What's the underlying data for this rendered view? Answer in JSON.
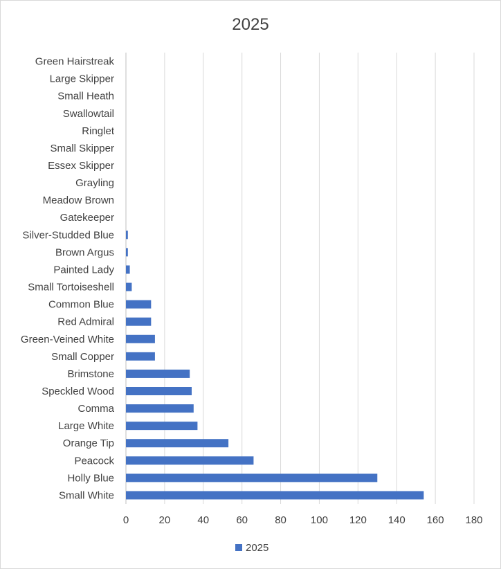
{
  "chart_data": {
    "type": "bar",
    "orientation": "horizontal",
    "title": "2025",
    "xlabel": "",
    "ylabel": "",
    "xlim": [
      0,
      180
    ],
    "x_ticks": [
      0,
      20,
      40,
      60,
      80,
      100,
      120,
      140,
      160,
      180
    ],
    "grid": true,
    "legend_position": "bottom",
    "bar_color": "#4472c4",
    "categories": [
      "Small White",
      "Holly Blue",
      "Peacock",
      "Orange Tip",
      "Large White",
      "Comma",
      "Speckled Wood",
      "Brimstone",
      "Small Copper",
      "Green-Veined White",
      "Red Admiral",
      "Common Blue",
      "Small Tortoiseshell",
      "Painted Lady",
      "Brown Argus",
      "Silver-Studded Blue",
      "Gatekeeper",
      "Meadow Brown",
      "Grayling",
      "Essex Skipper",
      "Small Skipper",
      "Ringlet",
      "Swallowtail",
      "Small Heath",
      "Large Skipper",
      "Green Hairstreak"
    ],
    "series": [
      {
        "name": "2025",
        "values": [
          154,
          130,
          66,
          53,
          37,
          35,
          34,
          33,
          15,
          15,
          13,
          13,
          3,
          2,
          1,
          1,
          0,
          0,
          0,
          0,
          0,
          0,
          0,
          0,
          0,
          0
        ]
      }
    ]
  }
}
